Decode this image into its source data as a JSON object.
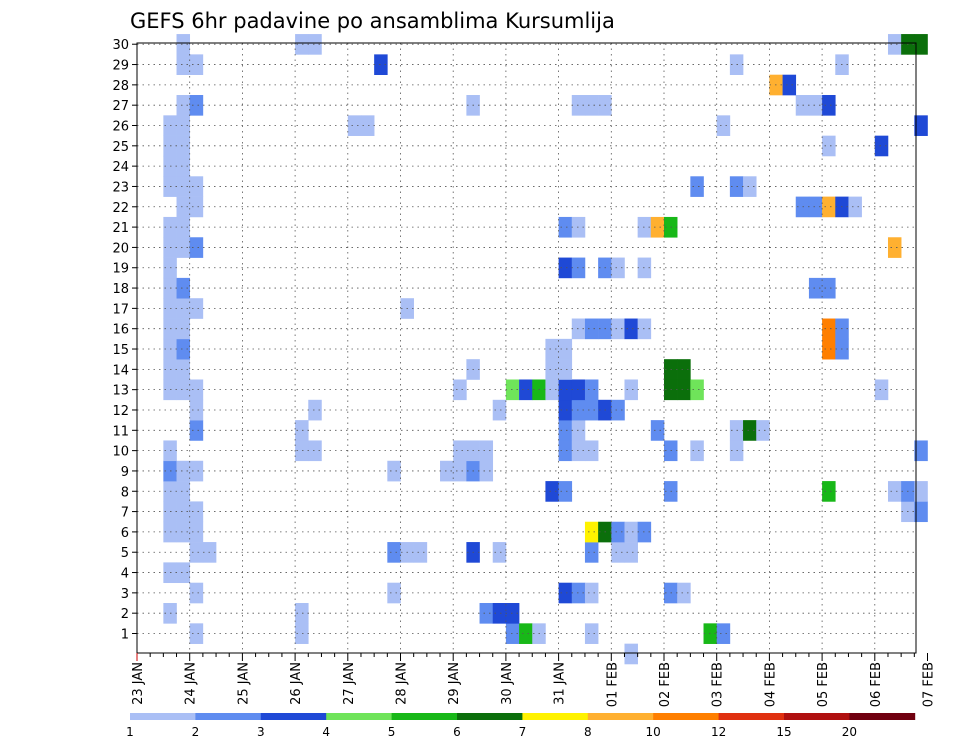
{
  "chart_data": {
    "type": "heatmap",
    "title": "GEFS 6hr padavine po ansamblima Kursumlija",
    "xlabel": "",
    "ylabel": "",
    "x_tick_labels": [
      "23 JAN",
      "24 JAN",
      "25 JAN",
      "26 JAN",
      "27 JAN",
      "28 JAN",
      "29 JAN",
      "30 JAN",
      "31 JAN",
      "01 FEB",
      "02 FEB",
      "03 FEB",
      "04 FEB",
      "05 FEB",
      "06 FEB",
      "07 FEB"
    ],
    "y_tick_labels": [
      "1",
      "2",
      "3",
      "4",
      "5",
      "6",
      "7",
      "8",
      "9",
      "10",
      "11",
      "12",
      "13",
      "14",
      "15",
      "16",
      "17",
      "18",
      "19",
      "20",
      "21",
      "22",
      "23",
      "24",
      "25",
      "26",
      "27",
      "28",
      "29",
      "30"
    ],
    "time_steps_per_day": 4,
    "members": 30,
    "grid": true,
    "colorbar": {
      "position": "bottom",
      "labels": [
        "1",
        "2",
        "3",
        "4",
        "5",
        "6",
        "7",
        "8",
        "10",
        "12",
        "15",
        "20"
      ],
      "colors": [
        "#aabff5",
        "#5f8cf0",
        "#1f49d6",
        "#6fe45a",
        "#18b818",
        "#0b6f0b",
        "#fff200",
        "#ffb030",
        "#ff7f00",
        "#e03010",
        "#b01010",
        "#700010"
      ]
    },
    "cells": [
      {
        "m": 1,
        "s": 4,
        "c": 0
      },
      {
        "m": 1,
        "s": 12,
        "c": 0
      },
      {
        "m": 1,
        "s": 28,
        "c": 1
      },
      {
        "m": 1,
        "s": 29,
        "c": 4
      },
      {
        "m": 1,
        "s": 30,
        "c": 0
      },
      {
        "m": 1,
        "s": 34,
        "c": 0
      },
      {
        "m": 1,
        "s": 43,
        "c": 4
      },
      {
        "m": 1,
        "s": 44,
        "c": 1
      },
      {
        "m": 2,
        "s": 2,
        "c": 0
      },
      {
        "m": 2,
        "s": 12,
        "c": 0
      },
      {
        "m": 2,
        "s": 26,
        "c": 1
      },
      {
        "m": 2,
        "s": 27,
        "c": 2
      },
      {
        "m": 2,
        "s": 28,
        "c": 2
      },
      {
        "m": 3,
        "s": 4,
        "c": 0
      },
      {
        "m": 3,
        "s": 19,
        "c": 0
      },
      {
        "m": 3,
        "s": 32,
        "c": 2
      },
      {
        "m": 3,
        "s": 33,
        "c": 1
      },
      {
        "m": 3,
        "s": 34,
        "c": 0
      },
      {
        "m": 3,
        "s": 40,
        "c": 1
      },
      {
        "m": 3,
        "s": 41,
        "c": 0
      },
      {
        "m": 4,
        "s": 2,
        "c": 0
      },
      {
        "m": 4,
        "s": 3,
        "c": 0
      },
      {
        "m": 5,
        "s": 4,
        "c": 0
      },
      {
        "m": 5,
        "s": 5,
        "c": 0
      },
      {
        "m": 5,
        "s": 19,
        "c": 1
      },
      {
        "m": 5,
        "s": 20,
        "c": 0
      },
      {
        "m": 5,
        "s": 21,
        "c": 0
      },
      {
        "m": 5,
        "s": 25,
        "c": 2
      },
      {
        "m": 5,
        "s": 27,
        "c": 0
      },
      {
        "m": 5,
        "s": 34,
        "c": 1
      },
      {
        "m": 5,
        "s": 36,
        "c": 0
      },
      {
        "m": 5,
        "s": 37,
        "c": 0
      },
      {
        "m": 6,
        "s": 2,
        "c": 0
      },
      {
        "m": 6,
        "s": 3,
        "c": 0
      },
      {
        "m": 6,
        "s": 4,
        "c": 0
      },
      {
        "m": 6,
        "s": 34,
        "c": 6
      },
      {
        "m": 6,
        "s": 35,
        "c": 5
      },
      {
        "m": 6,
        "s": 36,
        "c": 1
      },
      {
        "m": 6,
        "s": 37,
        "c": 0
      },
      {
        "m": 6,
        "s": 38,
        "c": 1
      },
      {
        "m": 7,
        "s": 2,
        "c": 0
      },
      {
        "m": 7,
        "s": 3,
        "c": 0
      },
      {
        "m": 7,
        "s": 4,
        "c": 0
      },
      {
        "m": 7,
        "s": 58,
        "c": 0
      },
      {
        "m": 7,
        "s": 59,
        "c": 1
      },
      {
        "m": 8,
        "s": 2,
        "c": 0
      },
      {
        "m": 8,
        "s": 3,
        "c": 0
      },
      {
        "m": 8,
        "s": 31,
        "c": 2
      },
      {
        "m": 8,
        "s": 32,
        "c": 1
      },
      {
        "m": 8,
        "s": 40,
        "c": 1
      },
      {
        "m": 8,
        "s": 52,
        "c": 4
      },
      {
        "m": 8,
        "s": 57,
        "c": 0
      },
      {
        "m": 8,
        "s": 58,
        "c": 1
      },
      {
        "m": 8,
        "s": 59,
        "c": 0
      },
      {
        "m": 9,
        "s": 2,
        "c": 1
      },
      {
        "m": 9,
        "s": 3,
        "c": 0
      },
      {
        "m": 9,
        "s": 4,
        "c": 0
      },
      {
        "m": 9,
        "s": 19,
        "c": 0
      },
      {
        "m": 9,
        "s": 23,
        "c": 0
      },
      {
        "m": 9,
        "s": 24,
        "c": 0
      },
      {
        "m": 9,
        "s": 25,
        "c": 1
      },
      {
        "m": 9,
        "s": 26,
        "c": 0
      },
      {
        "m": 10,
        "s": 2,
        "c": 0
      },
      {
        "m": 10,
        "s": 12,
        "c": 0
      },
      {
        "m": 10,
        "s": 13,
        "c": 0
      },
      {
        "m": 10,
        "s": 24,
        "c": 0
      },
      {
        "m": 10,
        "s": 25,
        "c": 0
      },
      {
        "m": 10,
        "s": 26,
        "c": 0
      },
      {
        "m": 10,
        "s": 32,
        "c": 1
      },
      {
        "m": 10,
        "s": 33,
        "c": 0
      },
      {
        "m": 10,
        "s": 34,
        "c": 0
      },
      {
        "m": 10,
        "s": 40,
        "c": 1
      },
      {
        "m": 10,
        "s": 42,
        "c": 0
      },
      {
        "m": 10,
        "s": 45,
        "c": 0
      },
      {
        "m": 10,
        "s": 59,
        "c": 1
      },
      {
        "m": 11,
        "s": 4,
        "c": 1
      },
      {
        "m": 11,
        "s": 12,
        "c": 0
      },
      {
        "m": 11,
        "s": 32,
        "c": 1
      },
      {
        "m": 11,
        "s": 33,
        "c": 0
      },
      {
        "m": 11,
        "s": 39,
        "c": 1
      },
      {
        "m": 11,
        "s": 45,
        "c": 0
      },
      {
        "m": 11,
        "s": 46,
        "c": 5
      },
      {
        "m": 11,
        "s": 47,
        "c": 0
      },
      {
        "m": 12,
        "s": 4,
        "c": 0
      },
      {
        "m": 12,
        "s": 13,
        "c": 0
      },
      {
        "m": 12,
        "s": 27,
        "c": 0
      },
      {
        "m": 12,
        "s": 32,
        "c": 2
      },
      {
        "m": 12,
        "s": 33,
        "c": 1
      },
      {
        "m": 12,
        "s": 34,
        "c": 1
      },
      {
        "m": 12,
        "s": 35,
        "c": 2
      },
      {
        "m": 12,
        "s": 36,
        "c": 1
      },
      {
        "m": 13,
        "s": 2,
        "c": 0
      },
      {
        "m": 13,
        "s": 3,
        "c": 0
      },
      {
        "m": 13,
        "s": 4,
        "c": 0
      },
      {
        "m": 13,
        "s": 24,
        "c": 0
      },
      {
        "m": 13,
        "s": 28,
        "c": 3
      },
      {
        "m": 13,
        "s": 29,
        "c": 2
      },
      {
        "m": 13,
        "s": 30,
        "c": 4
      },
      {
        "m": 13,
        "s": 31,
        "c": 0
      },
      {
        "m": 13,
        "s": 32,
        "c": 2
      },
      {
        "m": 13,
        "s": 33,
        "c": 2
      },
      {
        "m": 13,
        "s": 34,
        "c": 1
      },
      {
        "m": 13,
        "s": 37,
        "c": 0
      },
      {
        "m": 13,
        "s": 40,
        "c": 5
      },
      {
        "m": 13,
        "s": 41,
        "c": 5
      },
      {
        "m": 13,
        "s": 42,
        "c": 3
      },
      {
        "m": 13,
        "s": 56,
        "c": 0
      },
      {
        "m": 14,
        "s": 2,
        "c": 0
      },
      {
        "m": 14,
        "s": 3,
        "c": 0
      },
      {
        "m": 14,
        "s": 25,
        "c": 0
      },
      {
        "m": 14,
        "s": 31,
        "c": 0
      },
      {
        "m": 14,
        "s": 32,
        "c": 0
      },
      {
        "m": 14,
        "s": 40,
        "c": 5
      },
      {
        "m": 14,
        "s": 41,
        "c": 5
      },
      {
        "m": 15,
        "s": 2,
        "c": 0
      },
      {
        "m": 15,
        "s": 3,
        "c": 1
      },
      {
        "m": 15,
        "s": 31,
        "c": 0
      },
      {
        "m": 15,
        "s": 32,
        "c": 0
      },
      {
        "m": 15,
        "s": 52,
        "c": 8
      },
      {
        "m": 15,
        "s": 53,
        "c": 1
      },
      {
        "m": 16,
        "s": 2,
        "c": 0
      },
      {
        "m": 16,
        "s": 3,
        "c": 0
      },
      {
        "m": 16,
        "s": 33,
        "c": 0
      },
      {
        "m": 16,
        "s": 34,
        "c": 1
      },
      {
        "m": 16,
        "s": 35,
        "c": 1
      },
      {
        "m": 16,
        "s": 36,
        "c": 0
      },
      {
        "m": 16,
        "s": 37,
        "c": 2
      },
      {
        "m": 16,
        "s": 38,
        "c": 0
      },
      {
        "m": 16,
        "s": 52,
        "c": 8
      },
      {
        "m": 16,
        "s": 53,
        "c": 1
      },
      {
        "m": 17,
        "s": 2,
        "c": 0
      },
      {
        "m": 17,
        "s": 3,
        "c": 0
      },
      {
        "m": 17,
        "s": 4,
        "c": 0
      },
      {
        "m": 17,
        "s": 20,
        "c": 0
      },
      {
        "m": 18,
        "s": 2,
        "c": 0
      },
      {
        "m": 18,
        "s": 3,
        "c": 1
      },
      {
        "m": 18,
        "s": 51,
        "c": 1
      },
      {
        "m": 18,
        "s": 52,
        "c": 1
      },
      {
        "m": 19,
        "s": 2,
        "c": 0
      },
      {
        "m": 19,
        "s": 32,
        "c": 2
      },
      {
        "m": 19,
        "s": 33,
        "c": 1
      },
      {
        "m": 19,
        "s": 35,
        "c": 1
      },
      {
        "m": 19,
        "s": 36,
        "c": 0
      },
      {
        "m": 19,
        "s": 38,
        "c": 0
      },
      {
        "m": 20,
        "s": 2,
        "c": 0
      },
      {
        "m": 20,
        "s": 3,
        "c": 0
      },
      {
        "m": 20,
        "s": 4,
        "c": 1
      },
      {
        "m": 20,
        "s": 57,
        "c": 7
      },
      {
        "m": 21,
        "s": 2,
        "c": 0
      },
      {
        "m": 21,
        "s": 3,
        "c": 0
      },
      {
        "m": 21,
        "s": 32,
        "c": 1
      },
      {
        "m": 21,
        "s": 33,
        "c": 0
      },
      {
        "m": 21,
        "s": 38,
        "c": 0
      },
      {
        "m": 21,
        "s": 39,
        "c": 7
      },
      {
        "m": 21,
        "s": 40,
        "c": 4
      },
      {
        "m": 22,
        "s": 3,
        "c": 0
      },
      {
        "m": 22,
        "s": 4,
        "c": 0
      },
      {
        "m": 22,
        "s": 50,
        "c": 1
      },
      {
        "m": 22,
        "s": 51,
        "c": 1
      },
      {
        "m": 22,
        "s": 52,
        "c": 7
      },
      {
        "m": 22,
        "s": 53,
        "c": 2
      },
      {
        "m": 22,
        "s": 54,
        "c": 0
      },
      {
        "m": 23,
        "s": 2,
        "c": 0
      },
      {
        "m": 23,
        "s": 3,
        "c": 0
      },
      {
        "m": 23,
        "s": 4,
        "c": 0
      },
      {
        "m": 23,
        "s": 42,
        "c": 1
      },
      {
        "m": 23,
        "s": 45,
        "c": 1
      },
      {
        "m": 23,
        "s": 46,
        "c": 0
      },
      {
        "m": 24,
        "s": 2,
        "c": 0
      },
      {
        "m": 24,
        "s": 3,
        "c": 0
      },
      {
        "m": 25,
        "s": 2,
        "c": 0
      },
      {
        "m": 25,
        "s": 3,
        "c": 0
      },
      {
        "m": 25,
        "s": 52,
        "c": 0
      },
      {
        "m": 25,
        "s": 56,
        "c": 2
      },
      {
        "m": 26,
        "s": 2,
        "c": 0
      },
      {
        "m": 26,
        "s": 3,
        "c": 0
      },
      {
        "m": 26,
        "s": 16,
        "c": 0
      },
      {
        "m": 26,
        "s": 17,
        "c": 0
      },
      {
        "m": 26,
        "s": 44,
        "c": 0
      },
      {
        "m": 26,
        "s": 59,
        "c": 2
      },
      {
        "m": 27,
        "s": 3,
        "c": 0
      },
      {
        "m": 27,
        "s": 4,
        "c": 1
      },
      {
        "m": 27,
        "s": 25,
        "c": 0
      },
      {
        "m": 27,
        "s": 33,
        "c": 0
      },
      {
        "m": 27,
        "s": 34,
        "c": 0
      },
      {
        "m": 27,
        "s": 35,
        "c": 0
      },
      {
        "m": 27,
        "s": 50,
        "c": 0
      },
      {
        "m": 27,
        "s": 51,
        "c": 0
      },
      {
        "m": 27,
        "s": 52,
        "c": 2
      },
      {
        "m": 28,
        "s": 48,
        "c": 7
      },
      {
        "m": 28,
        "s": 49,
        "c": 2
      },
      {
        "m": 29,
        "s": 3,
        "c": 0
      },
      {
        "m": 29,
        "s": 4,
        "c": 0
      },
      {
        "m": 29,
        "s": 18,
        "c": 2
      },
      {
        "m": 29,
        "s": 45,
        "c": 0
      },
      {
        "m": 29,
        "s": 53,
        "c": 0
      },
      {
        "m": 30,
        "s": 3,
        "c": 0
      },
      {
        "m": 30,
        "s": 12,
        "c": 0
      },
      {
        "m": 30,
        "s": 13,
        "c": 0
      },
      {
        "m": 30,
        "s": 57,
        "c": 0
      },
      {
        "m": 30,
        "s": 58,
        "c": 5
      },
      {
        "m": 30,
        "s": 59,
        "c": 5
      },
      {
        "m": 0,
        "s": 37,
        "c": 0
      }
    ]
  }
}
